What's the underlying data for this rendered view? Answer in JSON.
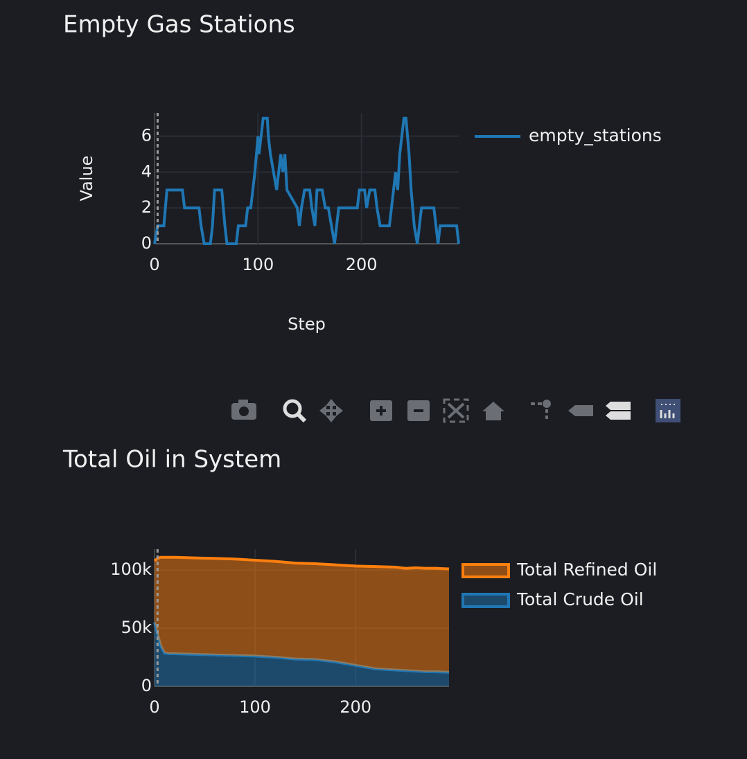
{
  "chart_data": [
    {
      "type": "line",
      "title": "Empty Gas Stations",
      "x_label": "Step",
      "y_label": "Value",
      "x": [
        0,
        3,
        9,
        12,
        27,
        29,
        43,
        45,
        48,
        54,
        56,
        58,
        65,
        68,
        70,
        79,
        81,
        88,
        90,
        93,
        95,
        97,
        100,
        101,
        103,
        105,
        109,
        110,
        112,
        115,
        118,
        120,
        122,
        124,
        126,
        128,
        138,
        140,
        142,
        145,
        150,
        152,
        155,
        157,
        162,
        165,
        168,
        171,
        174,
        176,
        178,
        196,
        198,
        203,
        205,
        208,
        213,
        215,
        218,
        227,
        229,
        231,
        233,
        235,
        237,
        239,
        241,
        243,
        246,
        248,
        251,
        254,
        256,
        258,
        270,
        272,
        274,
        276,
        292,
        294
      ],
      "series": [
        {
          "name": "empty_stations",
          "color": "#1f77b4",
          "values": [
            0,
            1,
            1,
            3,
            3,
            2,
            2,
            1,
            0,
            0,
            1,
            3,
            3,
            1,
            0,
            0,
            1,
            1,
            2,
            2,
            3,
            4,
            6,
            5,
            6,
            7,
            7,
            6,
            5,
            4,
            3,
            4,
            5,
            4,
            5,
            3,
            2,
            1,
            2,
            3,
            3,
            2,
            1,
            3,
            3,
            2,
            2,
            1,
            0,
            1,
            2,
            2,
            3,
            3,
            2,
            3,
            3,
            2,
            1,
            1,
            2,
            3,
            4,
            3,
            5,
            6,
            7,
            7,
            5,
            3,
            1,
            0,
            1,
            2,
            2,
            1,
            0,
            1,
            1,
            0
          ]
        }
      ],
      "xlim": [
        0,
        294
      ],
      "ylim": [
        0,
        7.3
      ],
      "xticks": [
        0,
        100,
        200
      ],
      "yticks": [
        0,
        2,
        4,
        6
      ],
      "grid": true,
      "reference_x": 3,
      "legend": "right"
    },
    {
      "type": "stacked_area",
      "title": "Total Oil in System",
      "x": [
        0,
        3,
        6,
        10,
        15,
        20,
        40,
        60,
        80,
        100,
        120,
        140,
        160,
        180,
        200,
        220,
        240,
        250,
        260,
        270,
        280,
        293
      ],
      "series": [
        {
          "name": "Total Crude Oil",
          "color": "#1f77b4",
          "values": [
            55000,
            45000,
            35000,
            28500,
            28000,
            28000,
            27500,
            27000,
            26500,
            26000,
            25000,
            23500,
            23000,
            21000,
            18000,
            15000,
            14000,
            13500,
            13000,
            12500,
            12500,
            12000
          ]
        },
        {
          "name": "Total Refined Oil",
          "color": "#ff7f0e",
          "values": [
            53000,
            65000,
            76000,
            82500,
            83000,
            83000,
            83000,
            83000,
            83000,
            82500,
            82500,
            82500,
            82500,
            83500,
            85500,
            88000,
            88500,
            88000,
            89000,
            89000,
            89000,
            89000
          ]
        }
      ],
      "xlim": [
        0,
        293
      ],
      "ylim": [
        0,
        118000
      ],
      "xticks": [
        0,
        100,
        200
      ],
      "yticks": [
        0,
        {
          "value": 50000,
          "label": "50k"
        },
        {
          "value": 100000,
          "label": "100k"
        }
      ],
      "grid": true,
      "reference_x": 3,
      "legend": "right",
      "legend_order": "reversed"
    }
  ]
}
